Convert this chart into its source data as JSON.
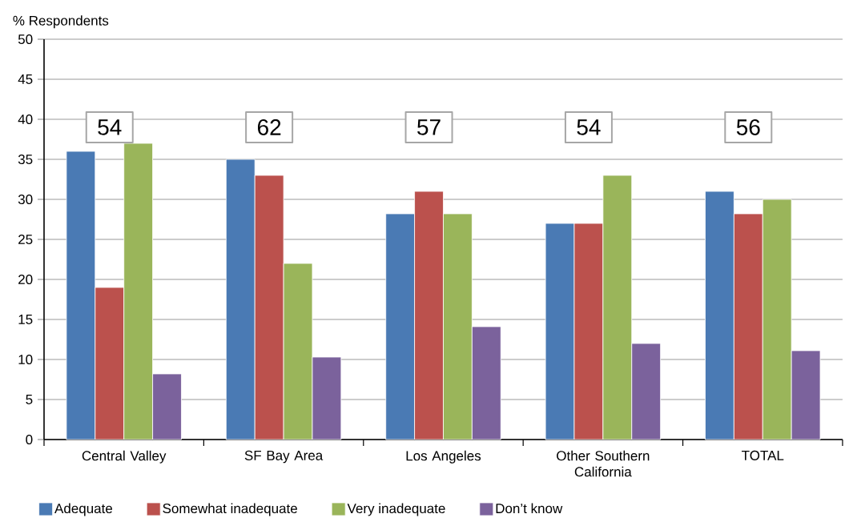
{
  "chart_data": {
    "type": "bar",
    "ylabel": "% Respondents",
    "categories": [
      "Central Valley",
      "SF Bay Area",
      "Los Angeles",
      "Other Southern California",
      "TOTAL"
    ],
    "series": [
      {
        "name": "Adequate",
        "color": "#4a7ab4",
        "values": [
          36,
          35,
          28.2,
          27,
          31
        ]
      },
      {
        "name": "Somewhat inadequate",
        "color": "#bb514d",
        "values": [
          19,
          33,
          31,
          27,
          28.2
        ]
      },
      {
        "name": "Very inadequate",
        "color": "#9ab55a",
        "values": [
          37,
          22,
          28.2,
          33,
          30
        ]
      },
      {
        "name": "Don’t know",
        "color": "#7b629c",
        "values": [
          8.2,
          10.3,
          14.1,
          12,
          11.1
        ]
      }
    ],
    "annotations": [
      "54",
      "62",
      "57",
      "54",
      "56"
    ],
    "ylim": [
      0,
      50
    ],
    "yticks": [
      0,
      5,
      10,
      15,
      20,
      25,
      30,
      35,
      40,
      45,
      50
    ],
    "grid": "y",
    "legend": "bottom"
  }
}
